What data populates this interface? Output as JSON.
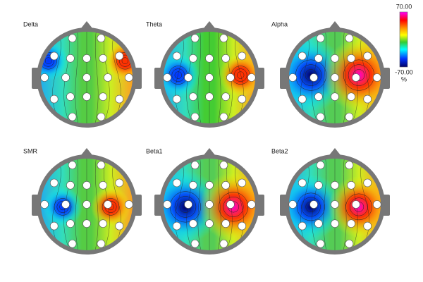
{
  "panels": [
    {
      "title": "Delta"
    },
    {
      "title": "Theta"
    },
    {
      "title": "Alpha"
    },
    {
      "title": "SMR"
    },
    {
      "title": "Beta1"
    },
    {
      "title": "Beta2"
    }
  ],
  "colorbar": {
    "max_label": "70.00",
    "min_label": "-70.00",
    "unit": "%"
  }
}
